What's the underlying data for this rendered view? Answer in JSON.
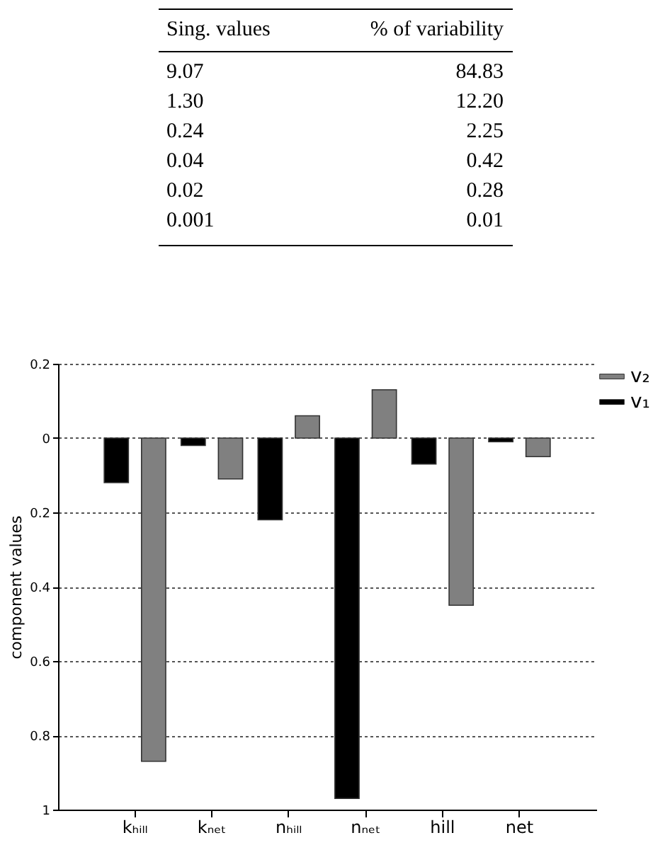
{
  "chart_data": [
    {
      "type": "other",
      "annotations": [
        "Sing. values",
        "% of variability",
        "9.07",
        "84.83",
        "1.30",
        "12.20",
        "0.24",
        "2.25",
        "0.04",
        "0.42",
        "0.02",
        "0.28",
        "0.001",
        "0.01"
      ]
    },
    {
      "type": "bar",
      "ylabel": "component values",
      "categories": [
        "kₕᵢₗₗ",
        "kₙₑₜ",
        "nₕᵢₗₗ",
        "nₙₑₜ",
        "hill",
        "net"
      ],
      "series": [
        {
          "name": "v₁",
          "color": "#000000",
          "values": [
            -0.12,
            -0.02,
            -0.22,
            -0.97,
            -0.07,
            -0.01
          ]
        },
        {
          "name": "v₂",
          "color": "#808080",
          "values": [
            -0.87,
            -0.11,
            0.06,
            0.13,
            -0.45,
            -0.05
          ]
        }
      ],
      "ylim": [
        -1,
        0.2
      ],
      "yticks": [
        {
          "value": -1,
          "label": "1"
        },
        {
          "value": -0.8,
          "label": "0.8"
        },
        {
          "value": -0.6,
          "label": "0.6"
        },
        {
          "value": -0.4,
          "label": "0.4"
        },
        {
          "value": -0.2,
          "label": "0.2"
        },
        {
          "value": 0,
          "label": "0"
        },
        {
          "value": 0.2,
          "label": "0.2"
        }
      ],
      "grid": "y",
      "legend": "top right"
    }
  ]
}
